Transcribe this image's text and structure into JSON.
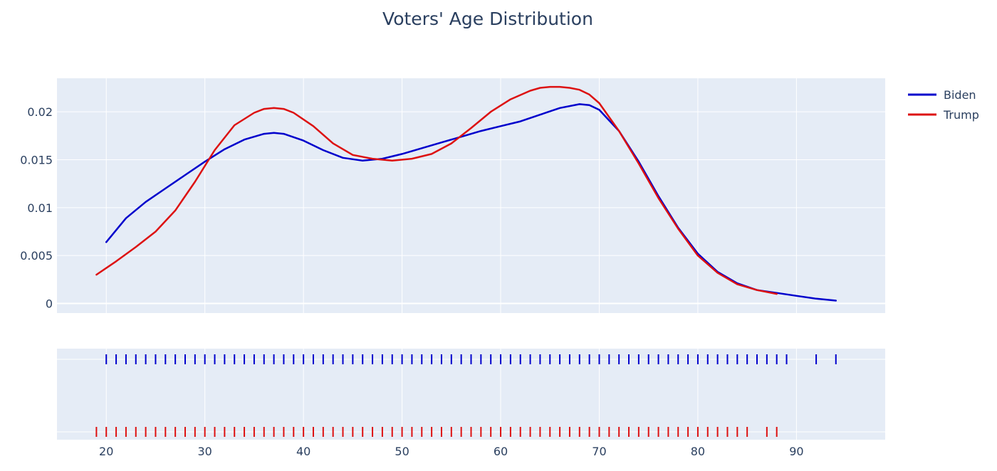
{
  "chart_data": {
    "type": "line",
    "title": "Voters' Age Distribution",
    "xlabel": "",
    "ylabel": "",
    "xlim": [
      15,
      99
    ],
    "ylim": [
      -0.001,
      0.0235
    ],
    "x_ticks": [
      20,
      30,
      40,
      50,
      60,
      70,
      80,
      90
    ],
    "y_ticks": [
      0,
      0.005,
      0.01,
      0.015,
      0.02
    ],
    "y_tick_labels": [
      "0",
      "0.005",
      "0.01",
      "0.015",
      "0.02"
    ],
    "grid": true,
    "legend_position": "top-right",
    "series": [
      {
        "name": "Biden",
        "color": "#0000cc",
        "x": [
          20,
          22,
          24,
          26,
          28,
          30,
          32,
          34,
          36,
          37,
          38,
          40,
          42,
          44,
          46,
          48,
          50,
          52,
          54,
          56,
          58,
          60,
          62,
          64,
          66,
          68,
          69,
          70,
          72,
          74,
          76,
          78,
          80,
          82,
          84,
          86,
          88,
          90,
          92,
          94
        ],
        "values": [
          0.0064,
          0.0089,
          0.0106,
          0.012,
          0.0134,
          0.0148,
          0.0161,
          0.0171,
          0.0177,
          0.0178,
          0.0177,
          0.017,
          0.016,
          0.0152,
          0.0149,
          0.0151,
          0.0156,
          0.0162,
          0.0168,
          0.0174,
          0.018,
          0.0185,
          0.019,
          0.0197,
          0.0204,
          0.0208,
          0.0207,
          0.0202,
          0.018,
          0.0148,
          0.0112,
          0.0079,
          0.0052,
          0.0033,
          0.0021,
          0.0014,
          0.0011,
          0.0008,
          0.0005,
          0.0003
        ]
      },
      {
        "name": "Trump",
        "color": "#dd1111",
        "x": [
          19,
          21,
          23,
          25,
          27,
          29,
          31,
          33,
          35,
          36,
          37,
          38,
          39,
          41,
          43,
          45,
          47,
          49,
          51,
          53,
          55,
          57,
          59,
          61,
          63,
          64,
          65,
          66,
          67,
          68,
          69,
          70,
          72,
          74,
          76,
          78,
          80,
          82,
          84,
          86,
          88
        ],
        "values": [
          0.003,
          0.0044,
          0.0059,
          0.0075,
          0.0097,
          0.0127,
          0.016,
          0.0186,
          0.0199,
          0.0203,
          0.0204,
          0.0203,
          0.0199,
          0.0185,
          0.0167,
          0.0155,
          0.0151,
          0.0149,
          0.0151,
          0.0156,
          0.0167,
          0.0183,
          0.02,
          0.0213,
          0.0222,
          0.0225,
          0.0226,
          0.0226,
          0.0225,
          0.0223,
          0.0218,
          0.0209,
          0.018,
          0.0146,
          0.011,
          0.0078,
          0.005,
          0.0032,
          0.002,
          0.0014,
          0.001
        ]
      }
    ],
    "rug": [
      {
        "name": "Biden",
        "color": "#0000cc",
        "x": [
          20,
          21,
          22,
          23,
          24,
          25,
          26,
          27,
          28,
          29,
          30,
          31,
          32,
          33,
          34,
          35,
          36,
          37,
          38,
          39,
          40,
          41,
          42,
          43,
          44,
          45,
          46,
          47,
          48,
          49,
          50,
          51,
          52,
          53,
          54,
          55,
          56,
          57,
          58,
          59,
          60,
          61,
          62,
          63,
          64,
          65,
          66,
          67,
          68,
          69,
          70,
          71,
          72,
          73,
          74,
          75,
          76,
          77,
          78,
          79,
          80,
          81,
          82,
          83,
          84,
          85,
          86,
          87,
          88,
          89,
          92,
          94
        ]
      },
      {
        "name": "Trump",
        "color": "#dd1111",
        "x": [
          19,
          20,
          21,
          22,
          23,
          24,
          25,
          26,
          27,
          28,
          29,
          30,
          31,
          32,
          33,
          34,
          35,
          36,
          37,
          38,
          39,
          40,
          41,
          42,
          43,
          44,
          45,
          46,
          47,
          48,
          49,
          50,
          51,
          52,
          53,
          54,
          55,
          56,
          57,
          58,
          59,
          60,
          61,
          62,
          63,
          64,
          65,
          66,
          67,
          68,
          69,
          70,
          71,
          72,
          73,
          74,
          75,
          76,
          77,
          78,
          79,
          80,
          81,
          82,
          83,
          84,
          85,
          87,
          88
        ]
      }
    ]
  }
}
